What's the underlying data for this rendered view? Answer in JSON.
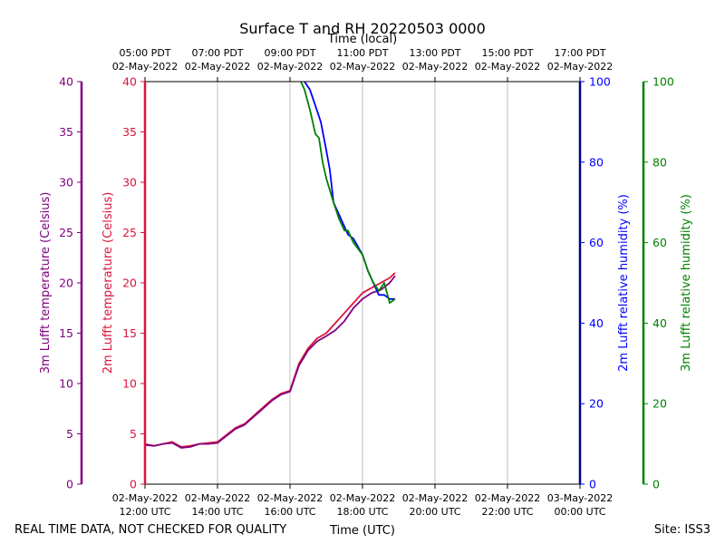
{
  "footer": {
    "disclaimer": "REAL TIME DATA, NOT CHECKED FOR QUALITY",
    "site": "Site: ISS3"
  },
  "colors": {
    "temp_3m": "#800080",
    "temp_2m": "#dc143c",
    "rh_2m": "#0000ff",
    "rh_3m": "#008000",
    "rh_2m_axis": "#00008b",
    "grid": "#b0b0b0"
  },
  "chart_data": {
    "type": "line",
    "title": "Surface T and RH 20220503 0000",
    "xlabel": "Time (UTC)",
    "xlabel_top": "Time (local)",
    "x_units": "hours since 02-May-2022 12:00 UTC",
    "xlim": [
      0,
      12
    ],
    "x_ticks": [
      {
        "x": 0,
        "utc": [
          "02-May-2022",
          "12:00 UTC"
        ],
        "local": [
          "05:00 PDT",
          "02-May-2022"
        ]
      },
      {
        "x": 2,
        "utc": [
          "02-May-2022",
          "14:00 UTC"
        ],
        "local": [
          "07:00 PDT",
          "02-May-2022"
        ]
      },
      {
        "x": 4,
        "utc": [
          "02-May-2022",
          "16:00 UTC"
        ],
        "local": [
          "09:00 PDT",
          "02-May-2022"
        ]
      },
      {
        "x": 6,
        "utc": [
          "02-May-2022",
          "18:00 UTC"
        ],
        "local": [
          "11:00 PDT",
          "02-May-2022"
        ]
      },
      {
        "x": 8,
        "utc": [
          "02-May-2022",
          "20:00 UTC"
        ],
        "local": [
          "13:00 PDT",
          "02-May-2022"
        ]
      },
      {
        "x": 10,
        "utc": [
          "02-May-2022",
          "22:00 UTC"
        ],
        "local": [
          "15:00 PDT",
          "02-May-2022"
        ]
      },
      {
        "x": 12,
        "utc": [
          "03-May-2022",
          "00:00 UTC"
        ],
        "local": [
          "17:00 PDT",
          "02-May-2022"
        ]
      }
    ],
    "axes": {
      "temp_3m": {
        "label": "3m Lufft temperature (Celsius)",
        "ylim": [
          0,
          40
        ],
        "ticks": [
          0,
          5,
          10,
          15,
          20,
          25,
          30,
          35,
          40
        ]
      },
      "temp_2m": {
        "label": "2m Lufft temperature (Celsius)",
        "ylim": [
          0,
          40
        ],
        "ticks": [
          0,
          5,
          10,
          15,
          20,
          25,
          30,
          35,
          40
        ]
      },
      "rh_2m": {
        "label": "2m Lufft relative humidity (%)",
        "ylim": [
          0,
          100
        ],
        "ticks": [
          0,
          20,
          40,
          60,
          80,
          100
        ]
      },
      "rh_3m": {
        "label": "3m Lufft relative humidity (%)",
        "ylim": [
          0,
          100
        ],
        "ticks": [
          0,
          20,
          40,
          60,
          80,
          100
        ]
      }
    },
    "series": [
      {
        "name": "2m Lufft temperature",
        "axis": "temp_2m",
        "x": [
          0,
          0.25,
          0.5,
          0.75,
          1.0,
          1.25,
          1.5,
          1.75,
          2.0,
          2.25,
          2.5,
          2.75,
          3.0,
          3.25,
          3.5,
          3.75,
          4.0,
          4.25,
          4.5,
          4.75,
          5.0,
          5.25,
          5.5,
          5.75,
          6.0,
          6.25,
          6.5,
          6.75,
          6.9
        ],
        "y": [
          4.0,
          3.8,
          4.0,
          4.2,
          3.7,
          3.8,
          4.0,
          4.1,
          4.2,
          4.9,
          5.6,
          6.0,
          6.8,
          7.6,
          8.4,
          9.0,
          9.3,
          12.0,
          13.5,
          14.5,
          15.0,
          16.0,
          17.0,
          18.0,
          19.0,
          19.5,
          20.0,
          20.5,
          21.0
        ]
      },
      {
        "name": "3m Lufft temperature",
        "axis": "temp_3m",
        "x": [
          0,
          0.25,
          0.5,
          0.75,
          1.0,
          1.25,
          1.5,
          1.75,
          2.0,
          2.25,
          2.5,
          2.75,
          3.0,
          3.25,
          3.5,
          3.75,
          4.0,
          4.25,
          4.5,
          4.75,
          5.0,
          5.25,
          5.5,
          5.75,
          6.0,
          6.25,
          6.5,
          6.75,
          6.9
        ],
        "y": [
          3.9,
          3.8,
          4.0,
          4.1,
          3.6,
          3.7,
          4.0,
          4.0,
          4.1,
          4.8,
          5.5,
          5.9,
          6.7,
          7.5,
          8.3,
          8.9,
          9.2,
          11.8,
          13.3,
          14.2,
          14.7,
          15.3,
          16.2,
          17.5,
          18.4,
          19.0,
          19.3,
          20.0,
          20.7
        ]
      },
      {
        "name": "2m Lufft relative humidity",
        "axis": "rh_2m",
        "x": [
          4.4,
          4.55,
          4.7,
          4.85,
          5.0,
          5.1,
          5.2,
          5.35,
          5.5,
          5.6,
          5.75,
          6.0,
          6.15,
          6.3,
          6.45,
          6.6,
          6.75,
          6.9
        ],
        "y": [
          100,
          98,
          94,
          90,
          83,
          78,
          70,
          67,
          64,
          62,
          61,
          57,
          53,
          50,
          47,
          47,
          46,
          46
        ]
      },
      {
        "name": "3m Lufft relative humidity",
        "axis": "rh_3m",
        "x": [
          4.3,
          4.4,
          4.55,
          4.7,
          4.8,
          4.9,
          5.0,
          5.1,
          5.2,
          5.35,
          5.5,
          5.6,
          5.75,
          6.0,
          6.15,
          6.3,
          6.45,
          6.6,
          6.75,
          6.9
        ],
        "y": [
          100,
          98,
          93,
          87,
          86,
          80,
          76,
          73,
          70,
          66,
          63,
          63,
          60,
          57,
          53,
          50,
          48,
          50,
          45,
          46
        ]
      }
    ]
  }
}
